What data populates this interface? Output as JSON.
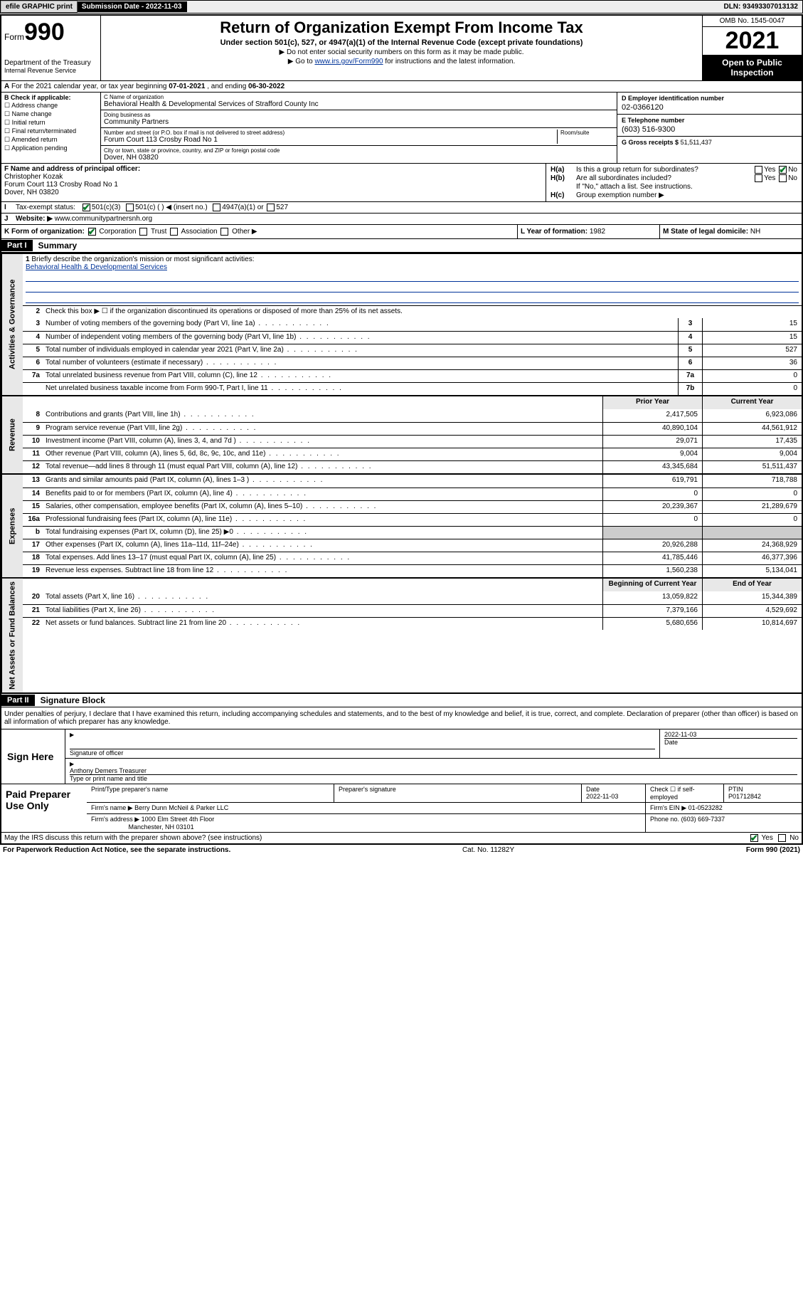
{
  "topbar": {
    "efile": "efile GRAPHIC print",
    "submission_label": "Submission Date - 2022-11-03",
    "dln": "DLN: 93493307013132"
  },
  "header": {
    "form_label": "Form",
    "form_number": "990",
    "dept": "Department of the Treasury",
    "irs": "Internal Revenue Service",
    "title": "Return of Organization Exempt From Income Tax",
    "subtitle": "Under section 501(c), 527, or 4947(a)(1) of the Internal Revenue Code (except private foundations)",
    "note1": "▶ Do not enter social security numbers on this form as it may be made public.",
    "note2_pre": "▶ Go to ",
    "note2_link": "www.irs.gov/Form990",
    "note2_post": " for instructions and the latest information.",
    "omb": "OMB No. 1545-0047",
    "year": "2021",
    "inspect": "Open to Public Inspection"
  },
  "row_a": {
    "text_pre": "For the 2021 calendar year, or tax year beginning ",
    "begin": "07-01-2021",
    "mid": " , and ending ",
    "end": "06-30-2022"
  },
  "col_b": {
    "title": "B Check if applicable:",
    "opts": [
      "Address change",
      "Name change",
      "Initial return",
      "Final return/terminated",
      "Amended return",
      "Application pending"
    ]
  },
  "col_c": {
    "name_lbl": "C Name of organization",
    "name_val": "Behavioral Health & Developmental Services of Strafford County Inc",
    "dba_lbl": "Doing business as",
    "dba_val": "Community Partners",
    "addr_lbl": "Number and street (or P.O. box if mail is not delivered to street address)",
    "room_lbl": "Room/suite",
    "addr_val": "Forum Court 113 Crosby Road No 1",
    "city_lbl": "City or town, state or province, country, and ZIP or foreign postal code",
    "city_val": "Dover, NH  03820"
  },
  "col_d": {
    "ein_lbl": "D Employer identification number",
    "ein_val": "02-0366120",
    "tel_lbl": "E Telephone number",
    "tel_val": "(603) 516-9300",
    "gross_lbl": "G Gross receipts $",
    "gross_val": "51,511,437"
  },
  "row_f": {
    "lbl": "F Name and address of principal officer:",
    "name": "Christopher Kozak",
    "addr1": "Forum Court 113 Crosby Road No 1",
    "addr2": "Dover, NH  03820"
  },
  "row_h": {
    "ha": "Is this a group return for subordinates?",
    "hb": "Are all subordinates included?",
    "hb_note": "If \"No,\" attach a list. See instructions.",
    "hc": "Group exemption number ▶",
    "yes": "Yes",
    "no": "No"
  },
  "row_i": {
    "lbl": "Tax-exempt status:",
    "o1": "501(c)(3)",
    "o2": "501(c) (  ) ◀ (insert no.)",
    "o3": "4947(a)(1) or",
    "o4": "527"
  },
  "row_j": {
    "lbl": "Website: ▶",
    "val": "www.communitypartnersnh.org"
  },
  "row_k": {
    "lbl": "K Form of organization:",
    "o1": "Corporation",
    "o2": "Trust",
    "o3": "Association",
    "o4": "Other ▶"
  },
  "row_l": {
    "lbl": "L Year of formation:",
    "val": "1982"
  },
  "row_m": {
    "lbl": "M State of legal domicile:",
    "val": "NH"
  },
  "part1": {
    "hdr": "Part I",
    "title": "Summary",
    "q1": "Briefly describe the organization's mission or most significant activities:",
    "mission": "Behavioral Health & Developmental Services",
    "q2": "Check this box ▶ ☐ if the organization discontinued its operations or disposed of more than 25% of its net assets.",
    "lines_gov": [
      {
        "n": "3",
        "t": "Number of voting members of the governing body (Part VI, line 1a)",
        "c": "3",
        "v": "15"
      },
      {
        "n": "4",
        "t": "Number of independent voting members of the governing body (Part VI, line 1b)",
        "c": "4",
        "v": "15"
      },
      {
        "n": "5",
        "t": "Total number of individuals employed in calendar year 2021 (Part V, line 2a)",
        "c": "5",
        "v": "527"
      },
      {
        "n": "6",
        "t": "Total number of volunteers (estimate if necessary)",
        "c": "6",
        "v": "36"
      },
      {
        "n": "7a",
        "t": "Total unrelated business revenue from Part VIII, column (C), line 12",
        "c": "7a",
        "v": "0"
      },
      {
        "n": "",
        "t": "Net unrelated business taxable income from Form 990-T, Part I, line 11",
        "c": "7b",
        "v": "0"
      }
    ],
    "col_hdr_prior": "Prior Year",
    "col_hdr_curr": "Current Year",
    "lines_rev": [
      {
        "n": "8",
        "t": "Contributions and grants (Part VIII, line 1h)",
        "p": "2,417,505",
        "c": "6,923,086"
      },
      {
        "n": "9",
        "t": "Program service revenue (Part VIII, line 2g)",
        "p": "40,890,104",
        "c": "44,561,912"
      },
      {
        "n": "10",
        "t": "Investment income (Part VIII, column (A), lines 3, 4, and 7d )",
        "p": "29,071",
        "c": "17,435"
      },
      {
        "n": "11",
        "t": "Other revenue (Part VIII, column (A), lines 5, 6d, 8c, 9c, 10c, and 11e)",
        "p": "9,004",
        "c": "9,004"
      },
      {
        "n": "12",
        "t": "Total revenue—add lines 8 through 11 (must equal Part VIII, column (A), line 12)",
        "p": "43,345,684",
        "c": "51,511,437"
      }
    ],
    "lines_exp": [
      {
        "n": "13",
        "t": "Grants and similar amounts paid (Part IX, column (A), lines 1–3 )",
        "p": "619,791",
        "c": "718,788"
      },
      {
        "n": "14",
        "t": "Benefits paid to or for members (Part IX, column (A), line 4)",
        "p": "0",
        "c": "0"
      },
      {
        "n": "15",
        "t": "Salaries, other compensation, employee benefits (Part IX, column (A), lines 5–10)",
        "p": "20,239,367",
        "c": "21,289,679"
      },
      {
        "n": "16a",
        "t": "Professional fundraising fees (Part IX, column (A), line 11e)",
        "p": "0",
        "c": "0"
      },
      {
        "n": "b",
        "t": "Total fundraising expenses (Part IX, column (D), line 25) ▶0",
        "p": "",
        "c": "",
        "grey": true
      },
      {
        "n": "17",
        "t": "Other expenses (Part IX, column (A), lines 11a–11d, 11f–24e)",
        "p": "20,926,288",
        "c": "24,368,929"
      },
      {
        "n": "18",
        "t": "Total expenses. Add lines 13–17 (must equal Part IX, column (A), line 25)",
        "p": "41,785,446",
        "c": "46,377,396"
      },
      {
        "n": "19",
        "t": "Revenue less expenses. Subtract line 18 from line 12",
        "p": "1,560,238",
        "c": "5,134,041"
      }
    ],
    "col_hdr_begin": "Beginning of Current Year",
    "col_hdr_end": "End of Year",
    "lines_net": [
      {
        "n": "20",
        "t": "Total assets (Part X, line 16)",
        "p": "13,059,822",
        "c": "15,344,389"
      },
      {
        "n": "21",
        "t": "Total liabilities (Part X, line 26)",
        "p": "7,379,166",
        "c": "4,529,692"
      },
      {
        "n": "22",
        "t": "Net assets or fund balances. Subtract line 21 from line 20",
        "p": "5,680,656",
        "c": "10,814,697"
      }
    ],
    "tab_gov": "Activities & Governance",
    "tab_rev": "Revenue",
    "tab_exp": "Expenses",
    "tab_net": "Net Assets or Fund Balances"
  },
  "part2": {
    "hdr": "Part II",
    "title": "Signature Block",
    "decl": "Under penalties of perjury, I declare that I have examined this return, including accompanying schedules and statements, and to the best of my knowledge and belief, it is true, correct, and complete. Declaration of preparer (other than officer) is based on all information of which preparer has any knowledge.",
    "sign_here": "Sign Here",
    "sig_officer": "Signature of officer",
    "sig_date": "2022-11-03",
    "date_lbl": "Date",
    "officer_name": "Anthony Demers Treasurer",
    "officer_lbl": "Type or print name and title",
    "paid": "Paid Preparer Use Only",
    "prep_name_lbl": "Print/Type preparer's name",
    "prep_sig_lbl": "Preparer's signature",
    "prep_date_lbl": "Date",
    "prep_date": "2022-11-03",
    "prep_check": "Check ☐ if self-employed",
    "ptin_lbl": "PTIN",
    "ptin": "P01712842",
    "firm_name_lbl": "Firm's name   ▶",
    "firm_name": "Berry Dunn McNeil & Parker LLC",
    "firm_ein_lbl": "Firm's EIN ▶",
    "firm_ein": "01-0523282",
    "firm_addr_lbl": "Firm's address ▶",
    "firm_addr1": "1000 Elm Street 4th Floor",
    "firm_addr2": "Manchester, NH  03101",
    "firm_phone_lbl": "Phone no.",
    "firm_phone": "(603) 669-7337",
    "may_discuss": "May the IRS discuss this return with the preparer shown above? (see instructions)"
  },
  "footer": {
    "pra": "For Paperwork Reduction Act Notice, see the separate instructions.",
    "cat": "Cat. No. 11282Y",
    "form": "Form 990 (2021)"
  }
}
